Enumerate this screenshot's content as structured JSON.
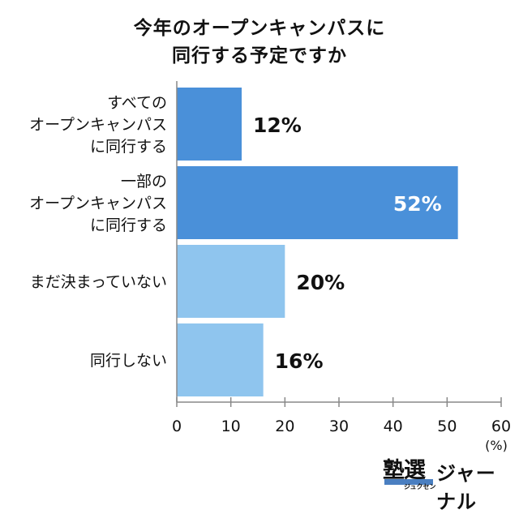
{
  "chart_data": {
    "type": "bar",
    "orientation": "horizontal",
    "title_lines": [
      "今年のオープンキャンパスに",
      "同行する予定ですか"
    ],
    "categories": [
      [
        "すべての",
        "オープンキャンパス",
        "に同行する"
      ],
      [
        "一部の",
        "オープンキャンパス",
        "に同行する"
      ],
      [
        "まだ決まっていない"
      ],
      [
        "同行しない"
      ]
    ],
    "values": [
      12,
      52,
      20,
      16
    ],
    "value_labels": [
      "12%",
      "52%",
      "20%",
      "16%"
    ],
    "bar_colors": [
      "#4a90d9",
      "#4a90d9",
      "#8fc5ee",
      "#8fc5ee"
    ],
    "x_ticks": [
      0,
      10,
      20,
      30,
      40,
      50,
      60
    ],
    "xlim": [
      0,
      60
    ],
    "unit_label": "(%)",
    "grid": false,
    "legend": "none"
  },
  "logo": {
    "kanji": "塾選",
    "sub": "ジュクセン",
    "journal": "ジャーナル"
  }
}
